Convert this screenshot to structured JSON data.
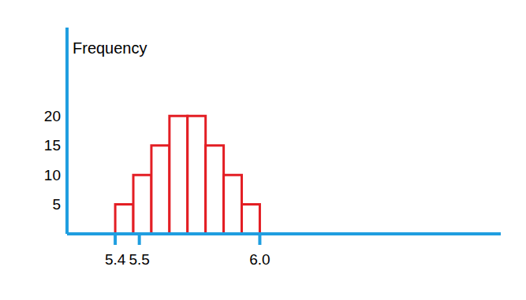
{
  "chart_data": {
    "type": "histogram",
    "y_label": "Frequency",
    "bins": [
      5.4,
      5.475,
      5.55,
      5.625,
      5.7,
      5.775,
      5.85,
      5.925,
      6.0
    ],
    "counts": [
      5,
      10,
      15,
      20,
      20,
      15,
      10,
      5
    ],
    "color": "#e31e24",
    "xlim": [
      5.2,
      7.0
    ],
    "xticks": [
      5.4,
      5.5,
      {
        "value": 6.0,
        "label": "6.0"
      }
    ],
    "ylim": [
      0,
      35
    ],
    "yticks": [
      5,
      10,
      15,
      20
    ],
    "grid": false
  }
}
